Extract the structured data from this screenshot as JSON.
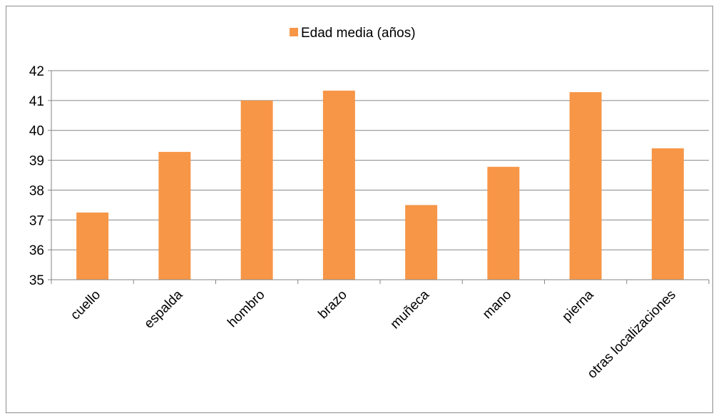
{
  "chart_data": {
    "type": "bar",
    "categories": [
      "cuello",
      "espalda",
      "hombro",
      "brazo",
      "muñeca",
      "mano",
      "pierna",
      "otras localizaciones"
    ],
    "series": [
      {
        "name": "Edad media (años)",
        "values": [
          37.25,
          39.28,
          41.0,
          41.33,
          37.5,
          38.78,
          41.28,
          39.4
        ],
        "color": "#f79646"
      }
    ],
    "yticks": [
      "35",
      "36",
      "37",
      "38",
      "39",
      "40",
      "41",
      "42"
    ],
    "ylim": [
      35,
      42
    ],
    "grid": true,
    "legend_position": "top"
  }
}
